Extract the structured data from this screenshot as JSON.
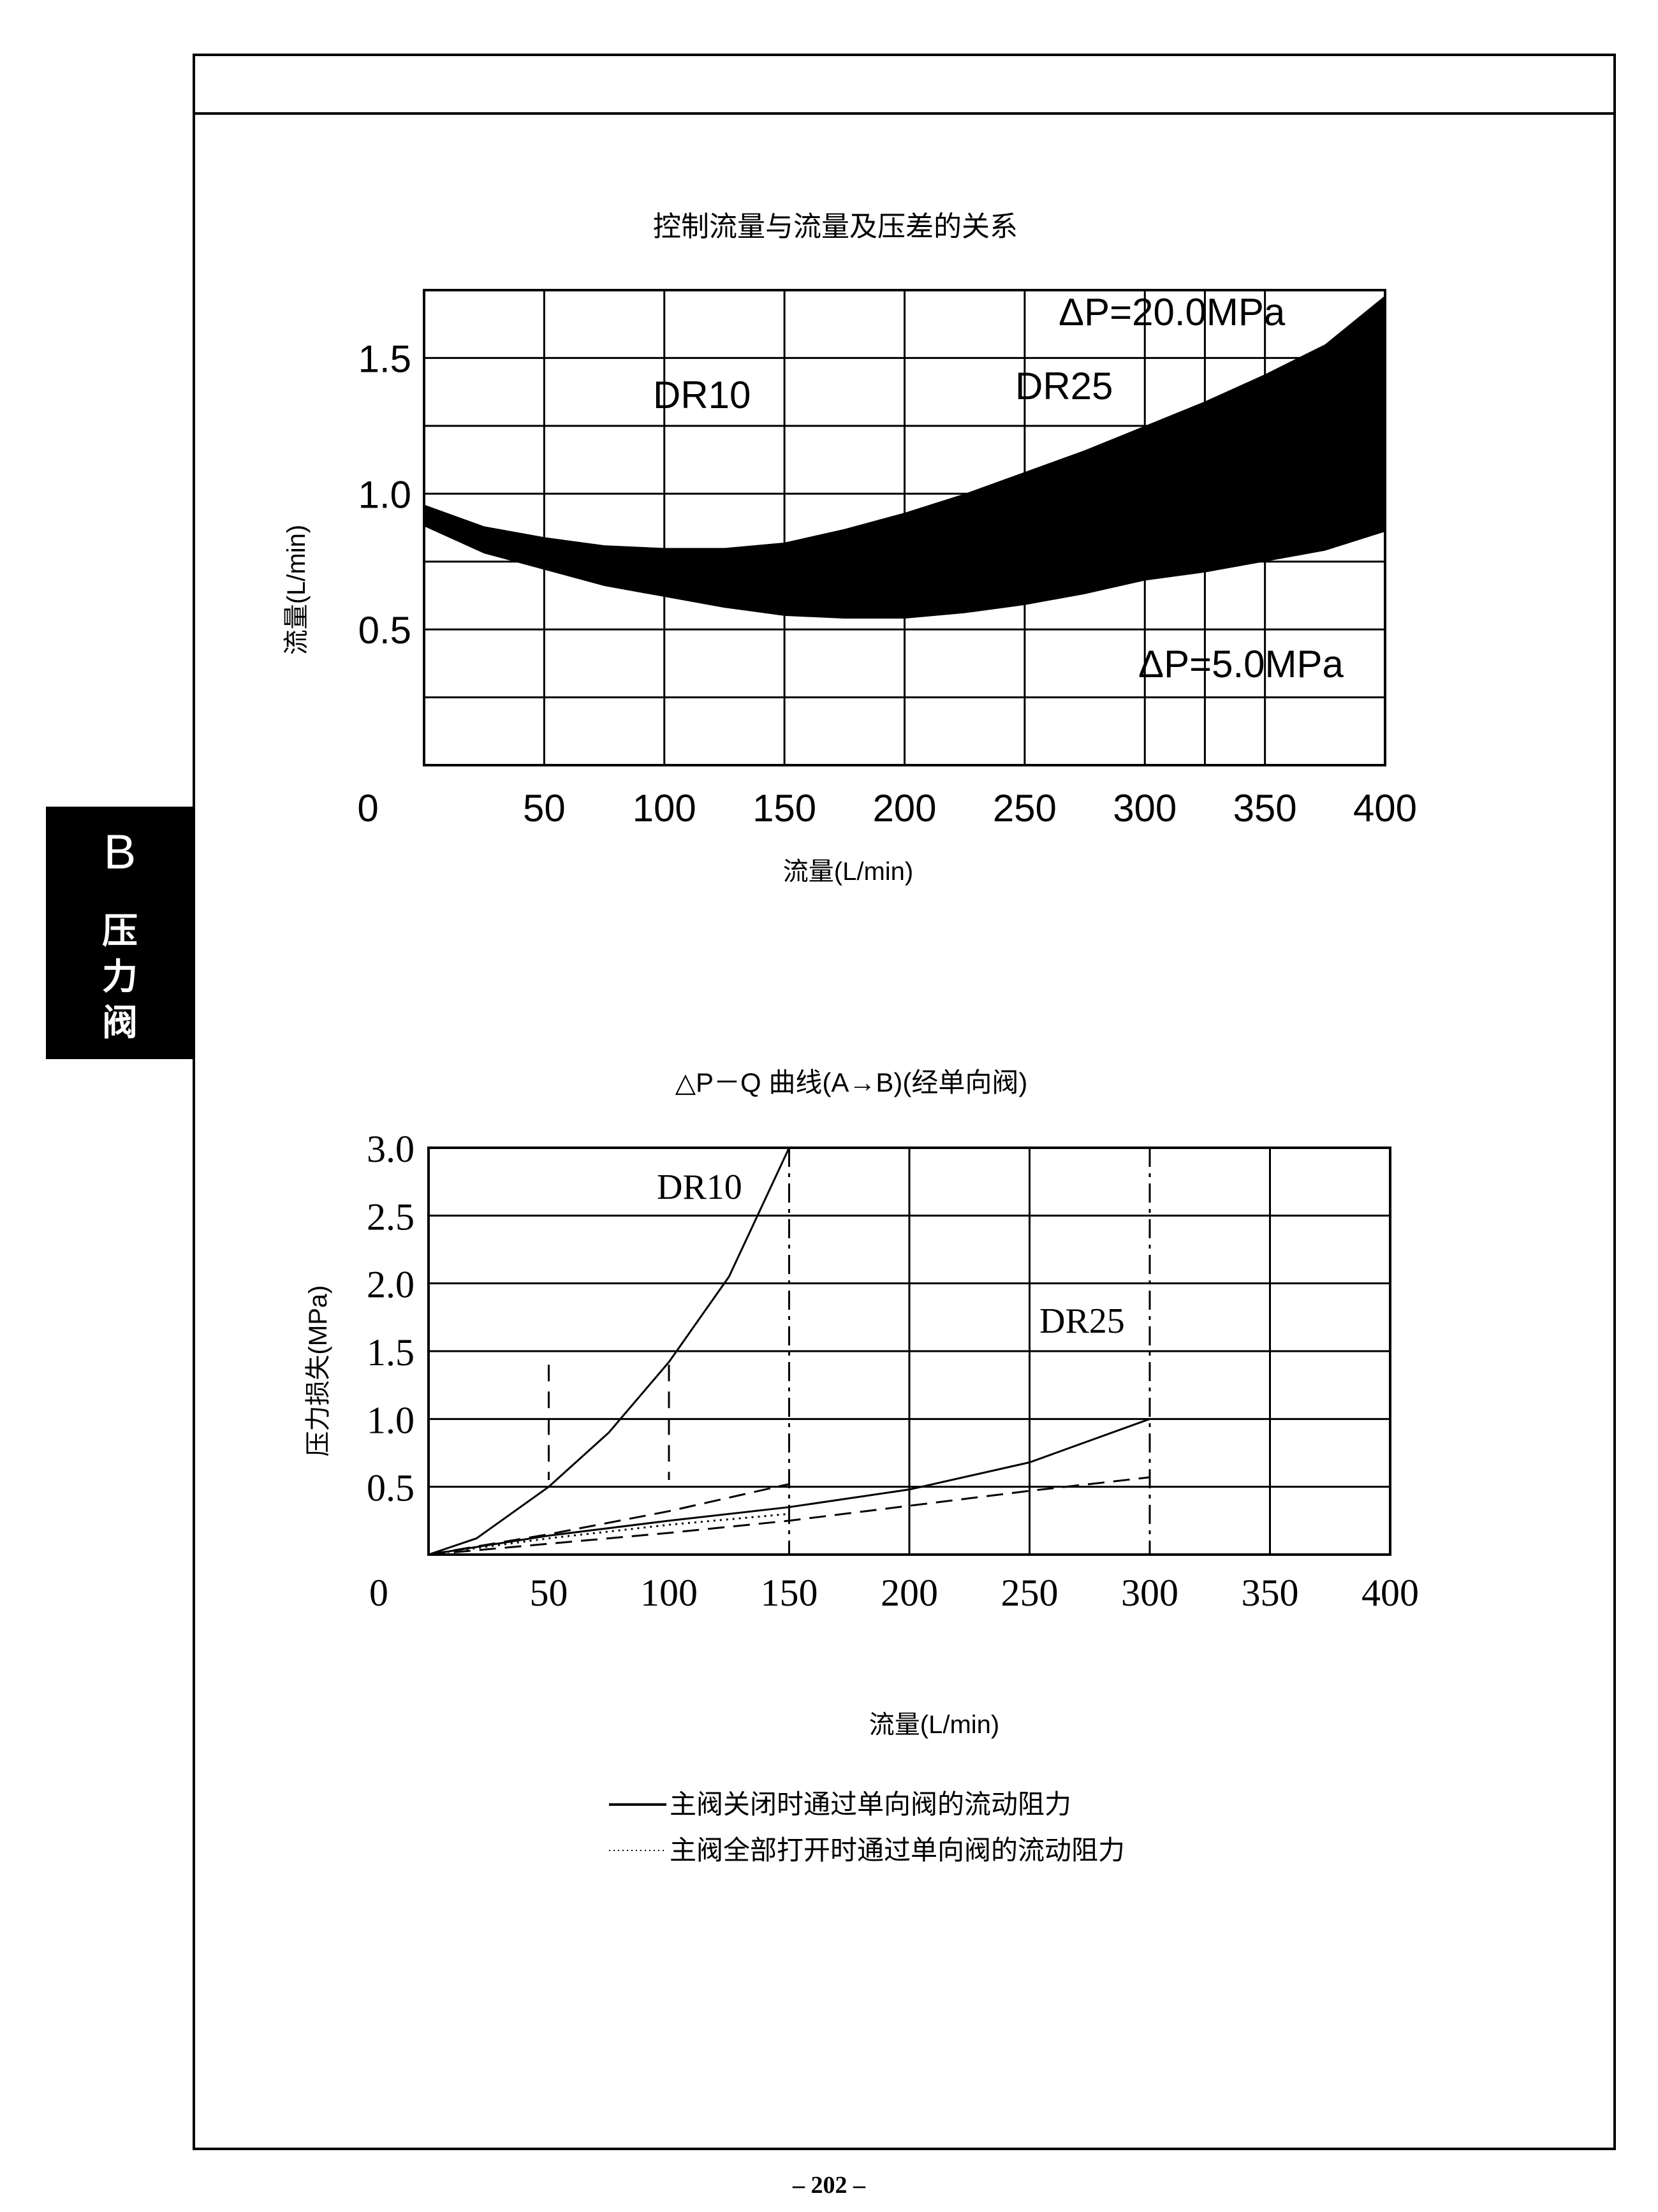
{
  "side_tab": {
    "letter": "B",
    "text": "压\n力\n阀"
  },
  "page_number": "– 202 –",
  "chart_data": [
    {
      "type": "area",
      "title": "控制流量与流量及压差的关系",
      "xlabel": "流量(L/min)",
      "ylabel": "流量(L/min)",
      "xlim": [
        0,
        400
      ],
      "ylim": [
        0,
        1.75
      ],
      "x_ticks": [
        0,
        50,
        100,
        150,
        200,
        250,
        300,
        350,
        400
      ],
      "y_ticks": [
        0.5,
        1.0,
        1.5
      ],
      "grid": true,
      "band": {
        "upper": {
          "name": "ΔP=20.0MPa",
          "points": [
            [
              0,
              0.96
            ],
            [
              25,
              0.88
            ],
            [
              50,
              0.84
            ],
            [
              75,
              0.81
            ],
            [
              100,
              0.8
            ],
            [
              125,
              0.8
            ],
            [
              150,
              0.82
            ],
            [
              175,
              0.87
            ],
            [
              200,
              0.93
            ],
            [
              225,
              1.0
            ],
            [
              250,
              1.08
            ],
            [
              275,
              1.16
            ],
            [
              300,
              1.25
            ],
            [
              325,
              1.34
            ],
            [
              350,
              1.44
            ],
            [
              375,
              1.55
            ],
            [
              400,
              1.73
            ]
          ]
        },
        "lower": {
          "name": "ΔP=5.0MPa",
          "points": [
            [
              0,
              0.88
            ],
            [
              25,
              0.78
            ],
            [
              50,
              0.72
            ],
            [
              75,
              0.66
            ],
            [
              100,
              0.62
            ],
            [
              125,
              0.58
            ],
            [
              150,
              0.55
            ],
            [
              175,
              0.54
            ],
            [
              200,
              0.54
            ],
            [
              225,
              0.56
            ],
            [
              250,
              0.59
            ],
            [
              275,
              0.63
            ],
            [
              300,
              0.68
            ],
            [
              325,
              0.71
            ],
            [
              350,
              0.75
            ],
            [
              375,
              0.79
            ],
            [
              400,
              0.86
            ]
          ]
        }
      },
      "series_labels": [
        "DR10",
        "DR25"
      ],
      "markers": {
        "DR10_max": 150,
        "DR25_max": 300
      },
      "vertical_lines": [
        50,
        100,
        150,
        200,
        250,
        300,
        325,
        350
      ],
      "horizontal_lines": [
        0.25,
        0.5,
        0.75,
        1.0,
        1.25,
        1.5
      ]
    },
    {
      "type": "line",
      "title": "△P－Q 曲线(A→B)(经单向阀)",
      "xlabel": "流量(L/min)",
      "ylabel": "压力损失(MPa)",
      "xlim": [
        0,
        400
      ],
      "ylim": [
        0,
        3.0
      ],
      "x_ticks": [
        0,
        50,
        100,
        150,
        200,
        250,
        300,
        350,
        400
      ],
      "y_ticks": [
        "0.5",
        "1.0",
        "1.5",
        "2.0",
        "2.5",
        "3.0"
      ],
      "grid": true,
      "series": [
        {
          "name": "DR10",
          "style": "solid",
          "points": [
            [
              0,
              0
            ],
            [
              20,
              0.12
            ],
            [
              50,
              0.5
            ],
            [
              75,
              0.9
            ],
            [
              100,
              1.42
            ],
            [
              125,
              2.05
            ],
            [
              150,
              3.0
            ]
          ]
        },
        {
          "name": "DR10",
          "style": "dashed",
          "points": [
            [
              0,
              0
            ],
            [
              50,
              0.15
            ],
            [
              100,
              0.32
            ],
            [
              150,
              0.52
            ]
          ]
        },
        {
          "name": "DR25",
          "style": "solid",
          "points": [
            [
              0,
              0
            ],
            [
              50,
              0.14
            ],
            [
              100,
              0.25
            ],
            [
              150,
              0.35
            ],
            [
              200,
              0.48
            ],
            [
              250,
              0.68
            ],
            [
              300,
              1.0
            ]
          ]
        },
        {
          "name": "DR25",
          "style": "dashed",
          "points": [
            [
              0,
              0
            ],
            [
              50,
              0.08
            ],
            [
              100,
              0.16
            ],
            [
              150,
              0.25
            ],
            [
              200,
              0.36
            ],
            [
              250,
              0.47
            ],
            [
              300,
              0.57
            ]
          ]
        },
        {
          "name": "",
          "style": "dotted",
          "points": [
            [
              0,
              0
            ],
            [
              50,
              0.12
            ],
            [
              100,
              0.22
            ],
            [
              150,
              0.3
            ]
          ]
        }
      ],
      "series_labels": [
        "DR10",
        "DR25"
      ],
      "dashdot_lines": [
        150,
        300
      ],
      "dashed_short_lines": [
        50,
        100
      ],
      "legend": {
        "position": "bottom",
        "items": [
          {
            "style": "solid",
            "text": "主阀关闭时通过单向阀的流动阻力"
          },
          {
            "style": "dotted",
            "text": "主阀全部打开时通过单向阀的流动阻力"
          }
        ]
      }
    }
  ]
}
